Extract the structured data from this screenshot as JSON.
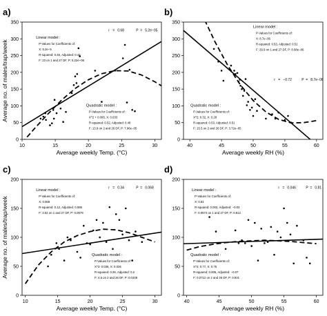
{
  "chart_data": [
    {
      "panel": "a)",
      "type": "scatter",
      "xlabel": "Average weekly Temp. (°C)",
      "ylabel": "Average no. of males/trap/week",
      "xlim": [
        10,
        31
      ],
      "ylim": [
        0,
        350
      ],
      "xticks": [
        10,
        15,
        20,
        25,
        30
      ],
      "yticks": [
        0,
        50,
        100,
        150,
        200,
        250,
        300,
        350
      ],
      "points": [
        [
          12.8,
          62
        ],
        [
          13.2,
          68
        ],
        [
          13.5,
          78
        ],
        [
          13.6,
          58
        ],
        [
          14.2,
          42
        ],
        [
          14.5,
          48
        ],
        [
          14.7,
          88
        ],
        [
          14.8,
          62
        ],
        [
          14.9,
          118
        ],
        [
          15.2,
          78
        ],
        [
          15.8,
          92
        ],
        [
          16.2,
          52
        ],
        [
          16.6,
          82
        ],
        [
          17.5,
          138
        ],
        [
          17.8,
          162
        ],
        [
          18.0,
          188
        ],
        [
          18.2,
          168
        ],
        [
          18.3,
          195
        ],
        [
          18.5,
          272
        ],
        [
          18.7,
          248
        ],
        [
          21.0,
          205
        ],
        [
          22.0,
          112
        ],
        [
          24.0,
          205
        ],
        [
          25.2,
          242
        ],
        [
          25.5,
          282
        ],
        [
          25.8,
          110
        ],
        [
          26.2,
          208
        ],
        [
          26.6,
          88
        ],
        [
          27.0,
          84
        ]
      ],
      "linear_fit": [
        [
          10,
          38
        ],
        [
          31,
          292
        ]
      ],
      "quadratic_fit": [
        [
          10,
          -10
        ],
        [
          12,
          35
        ],
        [
          14,
          78
        ],
        [
          16,
          118
        ],
        [
          18,
          152
        ],
        [
          20,
          178
        ],
        [
          22,
          196
        ],
        [
          24,
          205
        ],
        [
          26,
          204
        ],
        [
          28,
          192
        ],
        [
          30,
          172
        ],
        [
          31,
          160
        ]
      ],
      "annotations": {
        "r_label": "r",
        "r_value": "0.68",
        "p_label": "P",
        "p_value": "5.2e−05",
        "linear": {
          "title": "Linear model :",
          "line1": "P-Values for Coefficients of:",
          "line2": "X: 5.2e−5",
          "line3": "R-squared: 0.46, Adjusted: 0.44",
          "line4": "F: 23 on 1 and 27 DF,  P: 5.22e−05"
        },
        "quadratic": {
          "title": "Quadratic model :",
          "line1": "P-Values for Coefficients of:",
          "line2": "X^2 + 0.095, X: 0.033",
          "line3": "R-squared: 0.52, Adjusted: 0.48",
          "line4": "F: 13.9 on 2 and 26 DF,  P: 7.96e−05"
        }
      }
    },
    {
      "panel": "b)",
      "type": "scatter",
      "xlabel": "Average weekly RH (%)",
      "ylabel": "",
      "xlim": [
        39,
        61
      ],
      "ylim": [
        0,
        350
      ],
      "xticks": [
        40,
        45,
        50,
        55,
        60
      ],
      "yticks": [
        0,
        50,
        100,
        150,
        200,
        250,
        300,
        350
      ],
      "points": [
        [
          43.8,
          270
        ],
        [
          44.5,
          232
        ],
        [
          45.0,
          205
        ],
        [
          45.3,
          175
        ],
        [
          46.5,
          220
        ],
        [
          47.0,
          205
        ],
        [
          47.2,
          195
        ],
        [
          47.5,
          198
        ],
        [
          47.7,
          172
        ],
        [
          47.9,
          178
        ],
        [
          48.0,
          160
        ],
        [
          48.2,
          150
        ],
        [
          48.4,
          130
        ],
        [
          48.6,
          145
        ],
        [
          48.8,
          180
        ],
        [
          49.0,
          102
        ],
        [
          49.2,
          112
        ],
        [
          49.5,
          88
        ],
        [
          49.8,
          95
        ],
        [
          50.0,
          70
        ],
        [
          50.3,
          120
        ],
        [
          50.6,
          85
        ],
        [
          52.0,
          62
        ],
        [
          53.0,
          75
        ],
        [
          53.5,
          62
        ],
        [
          54.0,
          80
        ],
        [
          55.0,
          58
        ],
        [
          55.5,
          70
        ],
        [
          56.0,
          50
        ]
      ],
      "linear_fit": [
        [
          39,
          325
        ],
        [
          59,
          0
        ]
      ],
      "quadratic_fit": [
        [
          40,
          460
        ],
        [
          42,
          370
        ],
        [
          44,
          290
        ],
        [
          46,
          220
        ],
        [
          48,
          162
        ],
        [
          50,
          116
        ],
        [
          52,
          82
        ],
        [
          54,
          60
        ],
        [
          56,
          49
        ],
        [
          58,
          50
        ],
        [
          60,
          56
        ]
      ],
      "annotations": {
        "r_label": "r",
        "r_value": "−0.72",
        "p_label": "P",
        "p_value": "8.7e−06",
        "linear": {
          "title": "Linear model :",
          "line1": "P-Values for Coefficients of:",
          "line2": "X: 8.7e−06",
          "line3": "R-squared: 0.53, Adjusted: 0.51",
          "line4": "F: 29.9 on 1 and 27 DF,  P: 8.68e−06"
        },
        "quadratic": {
          "title": "Quadratic model :",
          "line1": "P-Values for Coefficients of:",
          "line2": "X^2: 0.32, X: 0.28",
          "line3": "R-squared: 0.53, Adjusted: 0.51",
          "line4": "F: 15.5 on 2 and 26 DF,  P: 3.72e−05"
        }
      }
    },
    {
      "panel": "c)",
      "type": "scatter",
      "xlabel": "Average weekly Temp. (°C)",
      "ylabel": "Average no. of males/trap/week",
      "xlim": [
        9.5,
        31
      ],
      "ylim": [
        0,
        200
      ],
      "xticks": [
        10,
        15,
        20,
        25,
        30
      ],
      "yticks": [
        0,
        50,
        100,
        150,
        200
      ],
      "points": [
        [
          13.5,
          50
        ],
        [
          14.0,
          70
        ],
        [
          14.8,
          90
        ],
        [
          15.2,
          80
        ],
        [
          16.0,
          60
        ],
        [
          16.5,
          100
        ],
        [
          17.0,
          95
        ],
        [
          18.0,
          75
        ],
        [
          18.5,
          65
        ],
        [
          19.0,
          120
        ],
        [
          19.5,
          90
        ],
        [
          20.0,
          88
        ],
        [
          20.5,
          112
        ],
        [
          21.0,
          130
        ],
        [
          21.5,
          100
        ],
        [
          22.0,
          125
        ],
        [
          22.5,
          92
        ],
        [
          23.0,
          152
        ],
        [
          23.5,
          80
        ],
        [
          24.0,
          140
        ],
        [
          24.5,
          130
        ],
        [
          25.0,
          105
        ],
        [
          25.5,
          150
        ],
        [
          26.0,
          95
        ],
        [
          26.5,
          60
        ],
        [
          27.0,
          110
        ],
        [
          28.0,
          92
        ]
      ],
      "linear_fit": [
        [
          9.5,
          72
        ],
        [
          31,
          109
        ]
      ],
      "quadratic_fit": [
        [
          10,
          20
        ],
        [
          12,
          52
        ],
        [
          14,
          75
        ],
        [
          16,
          92
        ],
        [
          18,
          103
        ],
        [
          20,
          110
        ],
        [
          22,
          114
        ],
        [
          24,
          113
        ],
        [
          26,
          108
        ],
        [
          28,
          100
        ],
        [
          30,
          92
        ]
      ],
      "annotations": {
        "r_label": "r",
        "r_value": "0.34",
        "p_label": "P",
        "p_value": "0.068",
        "linear": {
          "title": "Linear model :",
          "line1": "P-Values for Coefficients of:",
          "line2": "X: 0.068",
          "line3": "R-squared: 0.12, Adjusted: 0.086",
          "line4": "F: 3.62 on 1 and 27 DF,  P: 0.0679"
        },
        "quadratic": {
          "title": "Quadratic model :",
          "line1": "P-Values for Coefficients of:",
          "line2": "X^2: 0.036, X: 0.026",
          "line3": "R-squared: 0.26, Adjusted: 0.2",
          "line4": "F: 4.5 on 2 and 26 DF,  P: 0.0209"
        }
      }
    },
    {
      "panel": "d)",
      "type": "scatter",
      "xlabel": "Average weekly RH (%)",
      "ylabel": "",
      "xlim": [
        39.5,
        61
      ],
      "ylim": [
        0,
        200
      ],
      "xticks": [
        40,
        45,
        50,
        55,
        60
      ],
      "yticks": [
        0,
        50,
        100,
        150,
        200
      ],
      "points": [
        [
          43.5,
          135
        ],
        [
          44.5,
          110
        ],
        [
          46.0,
          80
        ],
        [
          47.5,
          112
        ],
        [
          48.0,
          90
        ],
        [
          48.5,
          95
        ],
        [
          49.0,
          90
        ],
        [
          49.5,
          130
        ],
        [
          50.0,
          85
        ],
        [
          50.5,
          125
        ],
        [
          51.0,
          60
        ],
        [
          51.5,
          115
        ],
        [
          52.0,
          90
        ],
        [
          52.5,
          92
        ],
        [
          53.0,
          118
        ],
        [
          53.5,
          70
        ],
        [
          54.0,
          110
        ],
        [
          54.5,
          100
        ],
        [
          55.0,
          150
        ],
        [
          55.5,
          125
        ],
        [
          56.0,
          105
        ],
        [
          56.5,
          55
        ],
        [
          57.0,
          120
        ],
        [
          58.0,
          95
        ],
        [
          58.5,
          65
        ],
        [
          59.0,
          55
        ]
      ],
      "linear_fit": [
        [
          39.5,
          89
        ],
        [
          61,
          97
        ]
      ],
      "quadratic_fit": [
        [
          40,
          78
        ],
        [
          42,
          84
        ],
        [
          44,
          88
        ],
        [
          46,
          91
        ],
        [
          48,
          93
        ],
        [
          50,
          94
        ],
        [
          52,
          95
        ],
        [
          54,
          94
        ],
        [
          56,
          93
        ],
        [
          58,
          91
        ],
        [
          60,
          89
        ]
      ],
      "annotations": {
        "r_label": "r",
        "r_value": "0.046",
        "p_label": "P",
        "p_value": "0.81",
        "linear": {
          "title": "Linear model :",
          "line1": "P-Values for Coefficients of:",
          "line2": "X: 0.81",
          "line3": "R-squared: 0.002, Adjusted: −0.03",
          "line4": "F: 0.0574 on 1 and 27 DF,  P: 0.812"
        },
        "quadratic": {
          "title": "Quadratic model :",
          "line1": "P-Values for Coefficients of:",
          "line2": "X^2: 0.77, X: 0.75",
          "line3": "R-squared: 0.005, Adjusted: −0.07",
          "line4": "F: 0.0712 on 2 and 26 DF,  P: 0.931"
        }
      }
    }
  ]
}
